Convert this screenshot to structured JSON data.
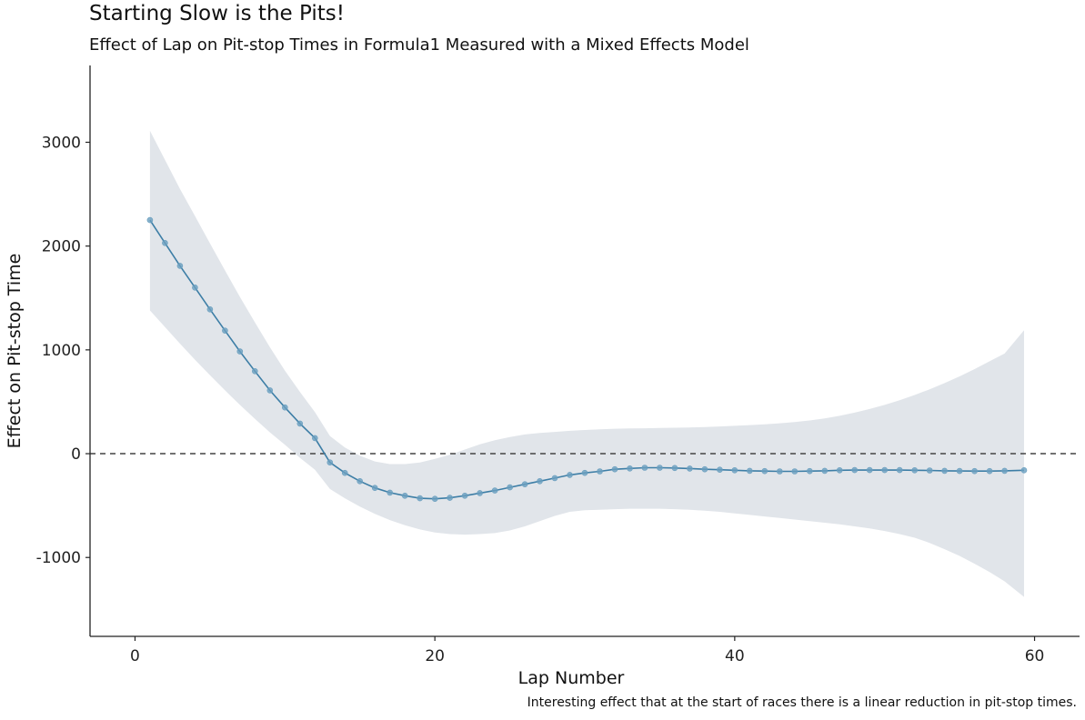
{
  "chart_data": {
    "type": "line",
    "title": "Starting Slow is the Pits!",
    "subtitle": "Effect of Lap on Pit-stop Times in Formula1 Measured with a Mixed Effects Model",
    "caption": "Interesting effect that at the start of races there is a linear reduction in pit-stop times.",
    "xlabel": "Lap Number",
    "ylabel": "Effect on Pit-stop Time",
    "xlim": [
      -3,
      63
    ],
    "ylim": [
      -1760,
      3740
    ],
    "x_ticks": [
      0,
      20,
      40,
      60
    ],
    "y_ticks": [
      -1000,
      0,
      1000,
      2000,
      3000
    ],
    "reference_line": {
      "y": 0,
      "style": "dashed"
    },
    "grid": false,
    "colors": {
      "line": "#3d7ea6",
      "points": "#6a9fbf",
      "ribbon": "#e1e5ea",
      "reference": "#444444"
    },
    "series": [
      {
        "x": [
          1,
          2,
          3,
          4,
          5,
          6,
          7,
          8,
          9,
          10,
          11,
          12,
          13,
          14,
          15,
          16,
          17,
          18,
          19,
          20,
          21,
          22,
          23,
          24,
          25,
          26,
          27,
          28,
          29,
          30,
          31,
          32,
          33,
          34,
          35,
          36,
          37,
          38,
          39,
          40,
          41,
          42,
          43,
          44,
          45,
          46,
          47,
          48,
          49,
          50,
          51,
          52,
          53,
          54,
          55,
          56,
          57,
          58,
          59.3
        ],
        "y": [
          2250,
          2030,
          1810,
          1600,
          1390,
          1185,
          985,
          795,
          610,
          445,
          290,
          150,
          -85,
          -185,
          -265,
          -330,
          -375,
          -405,
          -430,
          -435,
          -425,
          -405,
          -380,
          -355,
          -325,
          -295,
          -265,
          -235,
          -205,
          -185,
          -170,
          -150,
          -142,
          -135,
          -135,
          -138,
          -143,
          -150,
          -155,
          -160,
          -165,
          -168,
          -170,
          -170,
          -168,
          -165,
          -160,
          -158,
          -158,
          -158,
          -158,
          -160,
          -162,
          -165,
          -167,
          -168,
          -168,
          -165,
          -160
        ],
        "lower": [
          1380,
          1220,
          1060,
          905,
          755,
          610,
          470,
          335,
          205,
          85,
          -40,
          -155,
          -340,
          -430,
          -510,
          -580,
          -640,
          -690,
          -730,
          -760,
          -775,
          -780,
          -775,
          -765,
          -740,
          -700,
          -650,
          -600,
          -560,
          -545,
          -540,
          -535,
          -530,
          -530,
          -530,
          -535,
          -540,
          -550,
          -560,
          -575,
          -590,
          -605,
          -620,
          -635,
          -650,
          -665,
          -680,
          -700,
          -720,
          -745,
          -775,
          -810,
          -860,
          -920,
          -985,
          -1060,
          -1140,
          -1230,
          -1380
        ],
        "upper": [
          3110,
          2830,
          2550,
          2290,
          2025,
          1765,
          1510,
          1265,
          1025,
          800,
          595,
          400,
          170,
          60,
          -20,
          -75,
          -100,
          -100,
          -85,
          -50,
          -10,
          40,
          90,
          130,
          160,
          185,
          200,
          210,
          220,
          228,
          235,
          240,
          243,
          245,
          247,
          250,
          253,
          257,
          262,
          268,
          275,
          283,
          293,
          305,
          320,
          340,
          365,
          395,
          430,
          470,
          515,
          565,
          620,
          680,
          745,
          815,
          890,
          965,
          1190
        ]
      }
    ]
  }
}
